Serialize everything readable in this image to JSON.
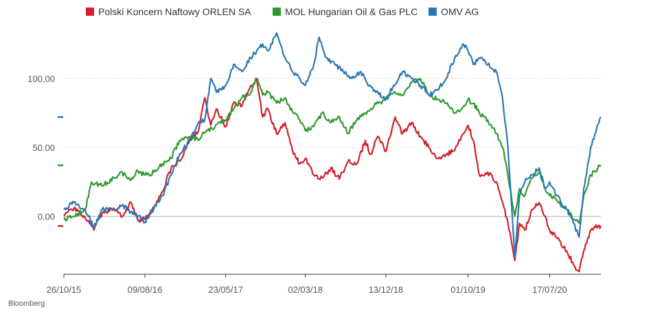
{
  "source": "Bloomberg",
  "chart_data": {
    "type": "line",
    "title": "",
    "xlabel": "",
    "ylabel": "",
    "x_tick_labels": [
      "26/10/15",
      "09/08/16",
      "23/05/17",
      "02/03/18",
      "13/12/18",
      "01/10/19",
      "17/07/20"
    ],
    "y_tick_labels": [
      "0.00",
      "50.00",
      "100.00"
    ],
    "y_ticks": [
      0,
      50,
      100
    ],
    "ylim": [
      -42,
      137
    ],
    "x_range": [
      "2015-10-26",
      "2021-01-15"
    ],
    "grid": "horizontal dotted",
    "legend_position": "top",
    "series": [
      {
        "name": "Polski Koncern Naftowy ORLEN SA",
        "color": "#d0202a",
        "last_value": -7,
        "points": [
          [
            "2015-10-26",
            0
          ],
          [
            "2015-12-01",
            6
          ],
          [
            "2016-01-10",
            -1
          ],
          [
            "2016-02-10",
            -10
          ],
          [
            "2016-03-10",
            2
          ],
          [
            "2016-04-20",
            6
          ],
          [
            "2016-05-20",
            0
          ],
          [
            "2016-06-20",
            10
          ],
          [
            "2016-07-15",
            -3
          ],
          [
            "2016-08-09",
            -2
          ],
          [
            "2016-09-10",
            6
          ],
          [
            "2016-10-10",
            18
          ],
          [
            "2016-11-10",
            35
          ],
          [
            "2016-12-10",
            40
          ],
          [
            "2017-01-15",
            56
          ],
          [
            "2017-02-15",
            62
          ],
          [
            "2017-03-10",
            86
          ],
          [
            "2017-03-31",
            66
          ],
          [
            "2017-04-20",
            78
          ],
          [
            "2017-05-23",
            65
          ],
          [
            "2017-06-20",
            82
          ],
          [
            "2017-07-20",
            80
          ],
          [
            "2017-08-20",
            95
          ],
          [
            "2017-09-10",
            100
          ],
          [
            "2017-10-01",
            72
          ],
          [
            "2017-10-20",
            78
          ],
          [
            "2017-11-20",
            60
          ],
          [
            "2017-12-20",
            68
          ],
          [
            "2018-01-15",
            48
          ],
          [
            "2018-02-10",
            38
          ],
          [
            "2018-03-02",
            42
          ],
          [
            "2018-04-01",
            30
          ],
          [
            "2018-05-01",
            28
          ],
          [
            "2018-06-01",
            35
          ],
          [
            "2018-07-01",
            27
          ],
          [
            "2018-08-01",
            40
          ],
          [
            "2018-09-01",
            38
          ],
          [
            "2018-10-01",
            55
          ],
          [
            "2018-10-20",
            45
          ],
          [
            "2018-11-15",
            58
          ],
          [
            "2018-12-13",
            47
          ],
          [
            "2019-01-15",
            72
          ],
          [
            "2019-02-10",
            60
          ],
          [
            "2019-03-15",
            68
          ],
          [
            "2019-04-15",
            58
          ],
          [
            "2019-05-15",
            50
          ],
          [
            "2019-06-15",
            42
          ],
          [
            "2019-07-15",
            45
          ],
          [
            "2019-08-15",
            48
          ],
          [
            "2019-09-15",
            60
          ],
          [
            "2019-10-01",
            66
          ],
          [
            "2019-10-20",
            55
          ],
          [
            "2019-11-10",
            30
          ],
          [
            "2019-12-10",
            32
          ],
          [
            "2020-01-10",
            25
          ],
          [
            "2020-02-01",
            10
          ],
          [
            "2020-02-20",
            -5
          ],
          [
            "2020-03-15",
            -32
          ],
          [
            "2020-04-01",
            -5
          ],
          [
            "2020-04-20",
            -10
          ],
          [
            "2020-05-15",
            5
          ],
          [
            "2020-06-10",
            10
          ],
          [
            "2020-07-01",
            0
          ],
          [
            "2020-07-17",
            -10
          ],
          [
            "2020-08-10",
            -15
          ],
          [
            "2020-09-15",
            -25
          ],
          [
            "2020-10-10",
            -35
          ],
          [
            "2020-10-30",
            -40
          ],
          [
            "2020-11-15",
            -25
          ],
          [
            "2020-12-10",
            -10
          ],
          [
            "2020-12-25",
            -8
          ],
          [
            "2021-01-15",
            -7
          ]
        ]
      },
      {
        "name": "MOL Hungarian Oil & Gas PLC",
        "color": "#2e9a2e",
        "last_value": 37,
        "points": [
          [
            "2015-10-26",
            -2
          ],
          [
            "2015-12-01",
            0
          ],
          [
            "2016-01-10",
            5
          ],
          [
            "2016-02-01",
            25
          ],
          [
            "2016-03-10",
            22
          ],
          [
            "2016-04-20",
            28
          ],
          [
            "2016-05-20",
            32
          ],
          [
            "2016-06-20",
            26
          ],
          [
            "2016-07-15",
            33
          ],
          [
            "2016-08-09",
            30
          ],
          [
            "2016-09-10",
            32
          ],
          [
            "2016-10-10",
            38
          ],
          [
            "2016-11-10",
            42
          ],
          [
            "2016-12-10",
            55
          ],
          [
            "2017-01-15",
            58
          ],
          [
            "2017-02-15",
            55
          ],
          [
            "2017-03-15",
            62
          ],
          [
            "2017-04-15",
            65
          ],
          [
            "2017-05-23",
            70
          ],
          [
            "2017-06-20",
            78
          ],
          [
            "2017-07-20",
            86
          ],
          [
            "2017-08-20",
            90
          ],
          [
            "2017-09-10",
            100
          ],
          [
            "2017-10-01",
            88
          ],
          [
            "2017-10-20",
            90
          ],
          [
            "2017-11-20",
            82
          ],
          [
            "2017-12-20",
            86
          ],
          [
            "2018-01-15",
            76
          ],
          [
            "2018-02-10",
            70
          ],
          [
            "2018-03-02",
            62
          ],
          [
            "2018-04-01",
            65
          ],
          [
            "2018-05-01",
            75
          ],
          [
            "2018-06-01",
            68
          ],
          [
            "2018-07-01",
            72
          ],
          [
            "2018-08-01",
            60
          ],
          [
            "2018-09-01",
            70
          ],
          [
            "2018-10-01",
            75
          ],
          [
            "2018-11-01",
            80
          ],
          [
            "2018-12-13",
            85
          ],
          [
            "2019-01-10",
            90
          ],
          [
            "2019-02-10",
            88
          ],
          [
            "2019-03-15",
            97
          ],
          [
            "2019-04-15",
            100
          ],
          [
            "2019-05-15",
            88
          ],
          [
            "2019-06-15",
            85
          ],
          [
            "2019-07-15",
            82
          ],
          [
            "2019-08-15",
            75
          ],
          [
            "2019-09-15",
            80
          ],
          [
            "2019-10-01",
            85
          ],
          [
            "2019-10-20",
            82
          ],
          [
            "2019-11-10",
            75
          ],
          [
            "2019-12-10",
            70
          ],
          [
            "2020-01-10",
            60
          ],
          [
            "2020-02-01",
            50
          ],
          [
            "2020-02-20",
            30
          ],
          [
            "2020-03-15",
            0
          ],
          [
            "2020-04-01",
            20
          ],
          [
            "2020-04-20",
            15
          ],
          [
            "2020-05-15",
            28
          ],
          [
            "2020-06-10",
            32
          ],
          [
            "2020-07-01",
            20
          ],
          [
            "2020-07-17",
            15
          ],
          [
            "2020-08-10",
            12
          ],
          [
            "2020-09-15",
            5
          ],
          [
            "2020-10-10",
            -2
          ],
          [
            "2020-10-30",
            -5
          ],
          [
            "2020-11-15",
            15
          ],
          [
            "2020-12-10",
            30
          ],
          [
            "2020-12-25",
            33
          ],
          [
            "2021-01-15",
            37
          ]
        ]
      },
      {
        "name": "OMV AG",
        "color": "#2a77b5",
        "last_value": 72,
        "points": [
          [
            "2015-10-26",
            5
          ],
          [
            "2015-12-01",
            10
          ],
          [
            "2016-01-10",
            5
          ],
          [
            "2016-02-10",
            -8
          ],
          [
            "2016-03-10",
            5
          ],
          [
            "2016-04-20",
            5
          ],
          [
            "2016-05-20",
            8
          ],
          [
            "2016-06-20",
            3
          ],
          [
            "2016-07-15",
            0
          ],
          [
            "2016-08-09",
            -4
          ],
          [
            "2016-09-10",
            6
          ],
          [
            "2016-10-10",
            15
          ],
          [
            "2016-11-10",
            30
          ],
          [
            "2016-12-10",
            45
          ],
          [
            "2017-01-15",
            55
          ],
          [
            "2017-02-15",
            68
          ],
          [
            "2017-03-10",
            70
          ],
          [
            "2017-03-31",
            100
          ],
          [
            "2017-04-20",
            90
          ],
          [
            "2017-05-23",
            95
          ],
          [
            "2017-06-20",
            110
          ],
          [
            "2017-07-20",
            105
          ],
          [
            "2017-08-20",
            115
          ],
          [
            "2017-09-10",
            120
          ],
          [
            "2017-10-01",
            125
          ],
          [
            "2017-10-20",
            120
          ],
          [
            "2017-11-20",
            133
          ],
          [
            "2017-12-20",
            115
          ],
          [
            "2018-01-15",
            105
          ],
          [
            "2018-02-10",
            100
          ],
          [
            "2018-03-02",
            95
          ],
          [
            "2018-04-01",
            110
          ],
          [
            "2018-04-20",
            130
          ],
          [
            "2018-05-15",
            115
          ],
          [
            "2018-06-15",
            110
          ],
          [
            "2018-07-15",
            105
          ],
          [
            "2018-08-15",
            100
          ],
          [
            "2018-09-15",
            105
          ],
          [
            "2018-10-15",
            95
          ],
          [
            "2018-11-15",
            90
          ],
          [
            "2018-12-13",
            85
          ],
          [
            "2019-01-10",
            95
          ],
          [
            "2019-02-10",
            105
          ],
          [
            "2019-03-15",
            100
          ],
          [
            "2019-04-15",
            95
          ],
          [
            "2019-05-15",
            88
          ],
          [
            "2019-06-15",
            92
          ],
          [
            "2019-07-15",
            100
          ],
          [
            "2019-08-15",
            115
          ],
          [
            "2019-09-15",
            125
          ],
          [
            "2019-10-01",
            120
          ],
          [
            "2019-10-20",
            110
          ],
          [
            "2019-11-10",
            115
          ],
          [
            "2019-12-10",
            110
          ],
          [
            "2020-01-10",
            105
          ],
          [
            "2020-02-01",
            85
          ],
          [
            "2020-02-20",
            50
          ],
          [
            "2020-03-15",
            -30
          ],
          [
            "2020-04-01",
            15
          ],
          [
            "2020-04-20",
            25
          ],
          [
            "2020-05-15",
            30
          ],
          [
            "2020-06-10",
            35
          ],
          [
            "2020-07-01",
            20
          ],
          [
            "2020-07-17",
            25
          ],
          [
            "2020-08-10",
            15
          ],
          [
            "2020-09-15",
            5
          ],
          [
            "2020-10-10",
            -5
          ],
          [
            "2020-10-30",
            -15
          ],
          [
            "2020-11-15",
            20
          ],
          [
            "2020-12-10",
            50
          ],
          [
            "2020-12-25",
            60
          ],
          [
            "2021-01-15",
            72
          ]
        ]
      }
    ]
  }
}
